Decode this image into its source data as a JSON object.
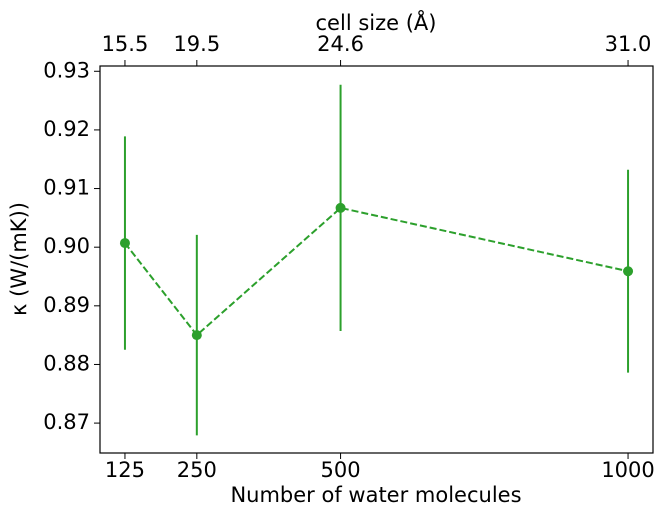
{
  "chart_data": {
    "type": "errorbar",
    "xlabel": "Number of water molecules",
    "ylabel": "κ (W/(mK))",
    "x2label": "cell size (Å)",
    "x": [
      125,
      250,
      500,
      1000
    ],
    "values": [
      0.9007,
      0.885,
      0.9067,
      0.8959
    ],
    "errors": [
      0.0182,
      0.0171,
      0.021,
      0.0173
    ],
    "color": "#2ca02c",
    "linestyle": "dashed",
    "xlim": [
      81.6,
      1043.4
    ],
    "xticks": [
      125,
      250,
      500,
      1000
    ],
    "x2ticks": [
      {
        "value": 125,
        "label": "15.5"
      },
      {
        "value": 250,
        "label": "19.5"
      },
      {
        "value": 500,
        "label": "24.6"
      },
      {
        "value": 1000,
        "label": "31.0"
      }
    ],
    "ylim": [
      0.8649,
      0.9309
    ],
    "yticks": [
      0.87,
      0.88,
      0.89,
      {
        "value": 0.9,
        "label": "0.90"
      },
      0.91,
      0.92,
      0.93
    ]
  }
}
